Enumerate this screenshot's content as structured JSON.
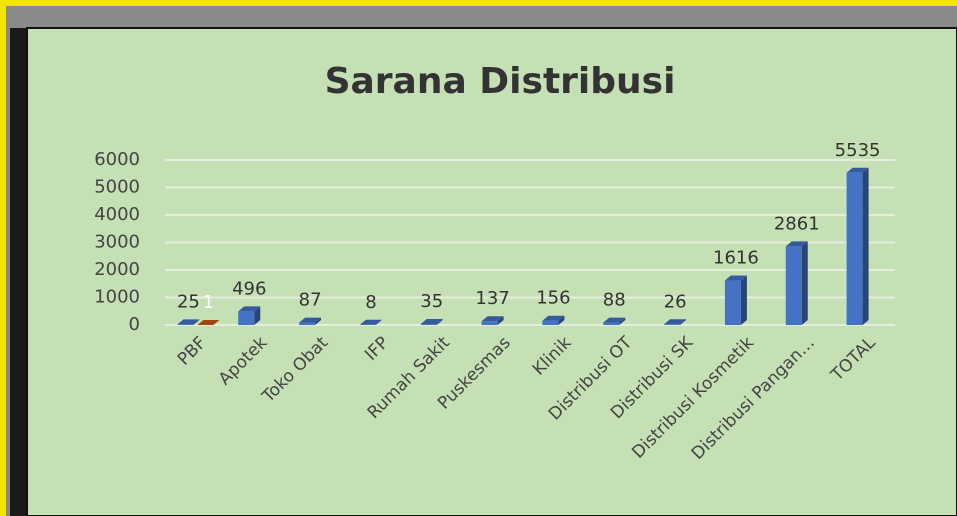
{
  "chart_data": {
    "type": "bar3d",
    "title": "Sarana Distribusi",
    "categories": [
      "PBF",
      "Apotek",
      "Toko Obat",
      "IFP",
      "Rumah Sakit",
      "Puskesmas",
      "Klinik",
      "Distribusi OT",
      "Distribusi SK",
      "Distribusi Kosmetik",
      "Distribusi Pangan…",
      "TOTAL"
    ],
    "series": [
      {
        "color": "#4472c4",
        "values": [
          25,
          496,
          87,
          8,
          35,
          137,
          156,
          88,
          26,
          1616,
          2861,
          5535
        ]
      },
      {
        "color": "#c55a11",
        "values": [
          1,
          null,
          null,
          null,
          null,
          null,
          null,
          null,
          null,
          null,
          null,
          null
        ]
      }
    ],
    "ylim": [
      0,
      6000
    ],
    "yticks": [
      0,
      1000,
      2000,
      3000,
      4000,
      5000,
      6000
    ],
    "grid": true
  }
}
